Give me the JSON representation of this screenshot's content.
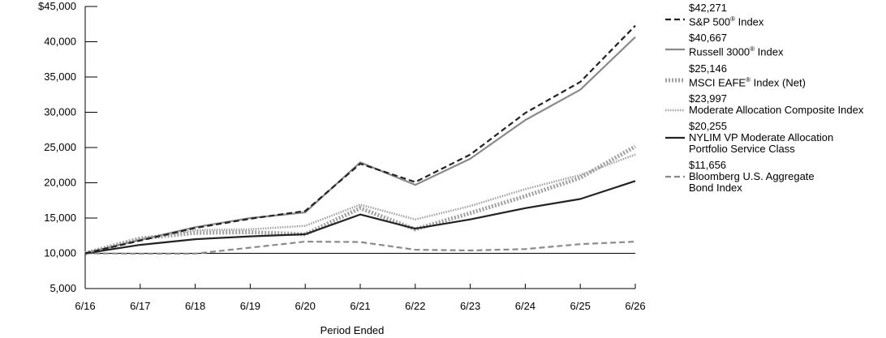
{
  "chart_data": {
    "type": "line",
    "xlabel": "Period Ended",
    "ylabel": "",
    "categories": [
      "6/16",
      "6/17",
      "6/18",
      "6/19",
      "6/20",
      "6/21",
      "6/22",
      "6/23",
      "6/24",
      "6/25",
      "6/26"
    ],
    "ylim": [
      5000,
      45000
    ],
    "y_ticks": [
      5000,
      10000,
      15000,
      20000,
      25000,
      30000,
      35000,
      40000,
      45000
    ],
    "y_tick_labels": [
      "5,000",
      "10,000",
      "15,000",
      "20,000",
      "25,000",
      "30,000",
      "35,000",
      "40,000",
      "$45,000"
    ],
    "reference_line": 10000,
    "grid": false,
    "legend_placement": "right",
    "series": [
      {
        "name": "S&P 500® Index",
        "final_label": "$42,271",
        "style": "dash",
        "color": "#222222",
        "values": [
          10000,
          11800,
          13600,
          14900,
          16000,
          22700,
          20100,
          24000,
          29900,
          34300,
          42271
        ]
      },
      {
        "name": "Russell 3000® Index",
        "final_label": "$40,667",
        "style": "solid",
        "color": "#8a8a8a",
        "values": [
          10000,
          11900,
          13700,
          15000,
          15800,
          22900,
          19700,
          23400,
          28900,
          33200,
          40667
        ]
      },
      {
        "name": "MSCI EAFE® Index (Net)",
        "final_label": "$25,146",
        "style": "thick-dot",
        "color": "#a0a0a0",
        "values": [
          10000,
          12100,
          12900,
          13000,
          12700,
          16400,
          13400,
          15700,
          18100,
          20700,
          25146
        ]
      },
      {
        "name": "Moderate Allocation Composite Index",
        "final_label": "$23,997",
        "style": "dot",
        "color": "#a0a0a0",
        "values": [
          10000,
          12000,
          13300,
          13400,
          13900,
          16900,
          14800,
          16700,
          19100,
          21100,
          23997
        ]
      },
      {
        "name": "NYLIM VP Moderate Allocation Portfolio Service Class",
        "final_label": "$20,255",
        "style": "solid",
        "color": "#222222",
        "values": [
          10000,
          11200,
          12000,
          12400,
          12700,
          15500,
          13500,
          14800,
          16400,
          17700,
          20255
        ]
      },
      {
        "name": "Bloomberg U.S. Aggregate Bond Index",
        "final_label": "$11,656",
        "style": "dash",
        "color": "#8a8a8a",
        "values": [
          10000,
          9950,
          9950,
          10800,
          11650,
          11600,
          10500,
          10400,
          10600,
          11300,
          11656
        ]
      }
    ]
  },
  "legend": [
    {
      "value": "$42,271",
      "name_lines": [
        "S&P 500",
        "® Index"
      ],
      "style": "dash",
      "color": "#222222"
    },
    {
      "value": "$40,667",
      "name_lines": [
        "Russell 3000",
        "® Index"
      ],
      "style": "solid",
      "color": "#8a8a8a"
    },
    {
      "value": "$25,146",
      "name_lines": [
        "MSCI EAFE",
        "® Index (Net)"
      ],
      "style": "thick-dot",
      "color": "#a0a0a0"
    },
    {
      "value": "$23,997",
      "name_lines": [
        "Moderate Allocation Composite Index"
      ],
      "style": "dot",
      "color": "#a0a0a0"
    },
    {
      "value": "$20,255",
      "name_lines": [
        "NYLIM VP Moderate Allocation",
        "Portfolio Service Class"
      ],
      "style": "solid",
      "color": "#222222"
    },
    {
      "value": "$11,656",
      "name_lines": [
        "Bloomberg U.S. Aggregate",
        "Bond Index"
      ],
      "style": "dash",
      "color": "#8a8a8a"
    }
  ]
}
